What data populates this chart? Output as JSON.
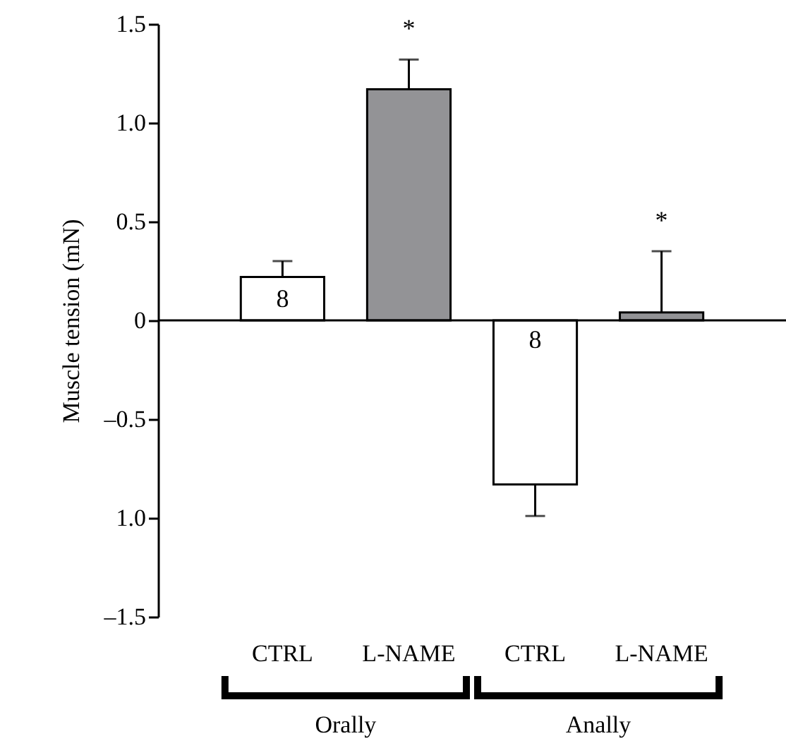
{
  "chart_data": {
    "type": "bar",
    "ylabel": "Muscle tension (mN)",
    "categories": [
      "CTRL",
      "L-NAME",
      "CTRL",
      "L-NAME"
    ],
    "values": [
      0.22,
      1.17,
      -0.83,
      0.04
    ],
    "colors": [
      "#ffffff",
      "#939396",
      "#ffffff",
      "#939396"
    ],
    "errors": [
      [
        0.22,
        0.3
      ],
      [
        1.17,
        1.32
      ],
      [
        -0.99,
        -0.83
      ],
      [
        0.04,
        0.35
      ]
    ],
    "ylim": [
      -1.5,
      1.5
    ],
    "yticks": [
      1.5,
      {
        "value": 1,
        "label": "1.0"
      },
      0.5,
      0,
      {
        "value": -0.5,
        "label": "–0.5"
      },
      {
        "value": -1,
        "label": "1.0"
      },
      {
        "value": -1.5,
        "label": "–1.5"
      }
    ],
    "annotations": [
      "8",
      "*",
      "8",
      "*",
      "Orally",
      "Anally"
    ]
  }
}
